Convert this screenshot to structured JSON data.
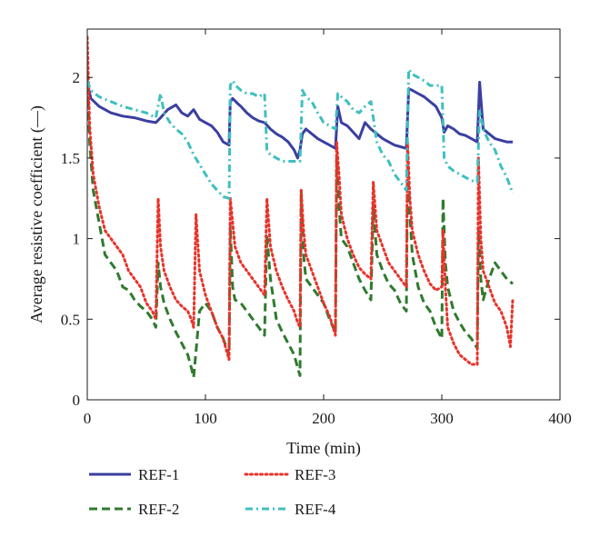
{
  "chart_data": {
    "type": "line",
    "xlabel": "Time (min)",
    "ylabel": "Average resistive coefficient (—)",
    "xlim": [
      0,
      400
    ],
    "ylim": [
      0,
      2.3
    ],
    "xticks": [
      0,
      100,
      200,
      300,
      400
    ],
    "yticks": [
      0,
      0.5,
      1,
      1.5,
      2
    ],
    "xtick_labels": [
      "0",
      "100",
      "200",
      "300",
      "400"
    ],
    "ytick_labels": [
      "0",
      "0.5",
      "1",
      "1.5",
      "2"
    ],
    "grid": false,
    "legend_position": "bottom",
    "series": [
      {
        "name": "REF-1",
        "color": "#3b3fa0",
        "dash": "solid",
        "x": [
          0,
          3,
          10,
          20,
          30,
          40,
          50,
          58,
          62,
          68,
          75,
          80,
          85,
          90,
          95,
          100,
          105,
          110,
          115,
          120,
          121,
          123,
          127,
          130,
          135,
          140,
          145,
          150,
          155,
          160,
          165,
          170,
          175,
          178,
          180,
          182,
          185,
          190,
          195,
          200,
          205,
          210,
          212,
          215,
          220,
          225,
          230,
          235,
          240,
          245,
          250,
          255,
          260,
          265,
          270,
          272,
          275,
          280,
          285,
          290,
          295,
          300,
          302,
          305,
          310,
          315,
          320,
          325,
          330,
          332,
          335,
          340,
          345,
          350,
          355,
          360
        ],
        "y": [
          1.97,
          1.87,
          1.82,
          1.78,
          1.76,
          1.75,
          1.73,
          1.72,
          1.75,
          1.8,
          1.83,
          1.78,
          1.76,
          1.8,
          1.74,
          1.72,
          1.7,
          1.66,
          1.6,
          1.58,
          1.85,
          1.87,
          1.84,
          1.82,
          1.78,
          1.75,
          1.73,
          1.72,
          1.68,
          1.65,
          1.63,
          1.6,
          1.55,
          1.5,
          1.55,
          1.65,
          1.68,
          1.65,
          1.62,
          1.6,
          1.58,
          1.56,
          1.82,
          1.72,
          1.7,
          1.66,
          1.62,
          1.72,
          1.68,
          1.65,
          1.62,
          1.6,
          1.58,
          1.57,
          1.56,
          1.93,
          1.92,
          1.9,
          1.88,
          1.85,
          1.82,
          1.75,
          1.66,
          1.7,
          1.68,
          1.65,
          1.64,
          1.62,
          1.6,
          1.97,
          1.68,
          1.65,
          1.62,
          1.61,
          1.6,
          1.6
        ]
      },
      {
        "name": "REF-2",
        "color": "#2f7a2f",
        "dash": "dashed",
        "x": [
          0,
          2,
          5,
          10,
          15,
          20,
          25,
          30,
          35,
          40,
          45,
          50,
          55,
          58,
          60,
          62,
          65,
          70,
          75,
          80,
          85,
          88,
          90,
          92,
          95,
          100,
          105,
          110,
          115,
          118,
          120,
          121,
          123,
          125,
          130,
          135,
          140,
          145,
          150,
          152,
          155,
          160,
          165,
          170,
          175,
          178,
          180,
          181,
          183,
          185,
          190,
          195,
          200,
          205,
          208,
          210,
          211,
          213,
          215,
          220,
          225,
          230,
          235,
          240,
          242,
          245,
          250,
          255,
          260,
          265,
          270,
          271,
          273,
          275,
          280,
          285,
          290,
          295,
          300,
          301,
          303,
          305,
          310,
          315,
          320,
          325,
          330,
          331,
          333,
          335,
          340,
          345,
          350,
          355,
          360
        ],
        "y": [
          2.02,
          1.6,
          1.3,
          1.1,
          0.9,
          0.85,
          0.8,
          0.7,
          0.68,
          0.62,
          0.58,
          0.55,
          0.5,
          0.45,
          0.85,
          0.7,
          0.6,
          0.5,
          0.42,
          0.35,
          0.28,
          0.2,
          0.14,
          0.3,
          0.55,
          0.6,
          0.55,
          0.45,
          0.38,
          0.32,
          0.28,
          1.08,
          0.7,
          0.62,
          0.6,
          0.55,
          0.5,
          0.45,
          0.4,
          1.02,
          0.75,
          0.5,
          0.42,
          0.35,
          0.28,
          0.2,
          0.15,
          1.3,
          0.9,
          0.75,
          0.7,
          0.65,
          0.6,
          0.5,
          0.45,
          0.42,
          1.5,
          1.2,
          1.0,
          0.95,
          0.85,
          0.75,
          0.68,
          0.62,
          1.2,
          0.9,
          0.8,
          0.72,
          0.68,
          0.6,
          0.55,
          1.45,
          1.15,
          0.9,
          0.7,
          0.6,
          0.55,
          0.45,
          0.38,
          1.25,
          0.85,
          0.7,
          0.55,
          0.48,
          0.42,
          0.38,
          0.32,
          1.05,
          0.75,
          0.62,
          0.75,
          0.85,
          0.8,
          0.75,
          0.72
        ]
      },
      {
        "name": "REF-3",
        "color": "#e8332a",
        "dash": "dotted",
        "x": [
          0,
          2,
          5,
          10,
          15,
          20,
          25,
          30,
          35,
          40,
          45,
          50,
          55,
          58,
          60,
          62,
          65,
          70,
          75,
          80,
          85,
          88,
          90,
          92,
          95,
          100,
          105,
          110,
          115,
          118,
          120,
          121,
          123,
          125,
          130,
          135,
          140,
          145,
          150,
          152,
          155,
          160,
          165,
          170,
          175,
          178,
          180,
          181,
          183,
          185,
          190,
          195,
          200,
          205,
          208,
          210,
          211,
          213,
          215,
          220,
          225,
          230,
          235,
          240,
          242,
          245,
          250,
          255,
          260,
          265,
          270,
          271,
          273,
          275,
          280,
          285,
          290,
          295,
          300,
          301,
          303,
          305,
          310,
          315,
          320,
          325,
          330,
          331,
          333,
          335,
          340,
          345,
          350,
          355,
          358,
          360
        ],
        "y": [
          2.25,
          1.7,
          1.4,
          1.2,
          1.05,
          1.0,
          0.95,
          0.9,
          0.8,
          0.75,
          0.7,
          0.6,
          0.55,
          0.5,
          1.25,
          0.95,
          0.8,
          0.7,
          0.62,
          0.58,
          0.55,
          0.5,
          0.45,
          1.15,
          0.8,
          0.65,
          0.55,
          0.45,
          0.38,
          0.3,
          0.25,
          1.25,
          1.1,
          0.95,
          0.85,
          0.8,
          0.75,
          0.7,
          0.65,
          1.25,
          0.95,
          0.8,
          0.7,
          0.62,
          0.55,
          0.48,
          0.45,
          1.3,
          1.05,
          0.9,
          0.8,
          0.7,
          0.6,
          0.52,
          0.45,
          0.4,
          1.6,
          1.4,
          1.15,
          1.0,
          0.9,
          0.82,
          0.78,
          0.75,
          1.35,
          1.05,
          0.95,
          0.85,
          0.8,
          0.75,
          0.7,
          1.6,
          1.25,
          1.05,
          0.9,
          0.8,
          0.72,
          0.68,
          0.7,
          1.05,
          0.7,
          0.45,
          0.35,
          0.28,
          0.25,
          0.22,
          0.22,
          1.5,
          1.0,
          0.8,
          0.7,
          0.6,
          0.55,
          0.45,
          0.33,
          0.62
        ]
      },
      {
        "name": "REF-4",
        "color": "#3fbfbf",
        "dash": "dashdot",
        "x": [
          0,
          3,
          10,
          20,
          30,
          40,
          50,
          58,
          62,
          65,
          70,
          75,
          80,
          85,
          90,
          95,
          100,
          105,
          110,
          115,
          120,
          121,
          123,
          127,
          130,
          135,
          140,
          145,
          150,
          152,
          155,
          160,
          165,
          170,
          175,
          180,
          182,
          185,
          190,
          195,
          200,
          205,
          210,
          212,
          215,
          220,
          225,
          230,
          235,
          240,
          245,
          250,
          255,
          260,
          265,
          270,
          272,
          275,
          280,
          285,
          290,
          295,
          300,
          302,
          305,
          310,
          315,
          320,
          325,
          330,
          332,
          335,
          340,
          345,
          350,
          355,
          360
        ],
        "y": [
          1.98,
          1.92,
          1.88,
          1.85,
          1.82,
          1.8,
          1.78,
          1.75,
          1.9,
          1.78,
          1.72,
          1.68,
          1.65,
          1.6,
          1.52,
          1.46,
          1.4,
          1.34,
          1.3,
          1.26,
          1.25,
          1.95,
          1.98,
          1.94,
          1.92,
          1.9,
          1.9,
          1.88,
          1.9,
          1.55,
          1.52,
          1.5,
          1.48,
          1.48,
          1.48,
          1.48,
          1.92,
          1.88,
          1.85,
          1.78,
          1.72,
          1.7,
          1.68,
          1.9,
          1.88,
          1.85,
          1.8,
          1.78,
          1.82,
          1.85,
          1.6,
          1.52,
          1.48,
          1.4,
          1.35,
          1.3,
          2.05,
          2.02,
          2.0,
          1.98,
          1.95,
          1.95,
          1.95,
          1.5,
          1.45,
          1.42,
          1.4,
          1.38,
          1.36,
          1.35,
          1.8,
          1.68,
          1.6,
          1.55,
          1.45,
          1.38,
          1.28
        ]
      }
    ]
  }
}
